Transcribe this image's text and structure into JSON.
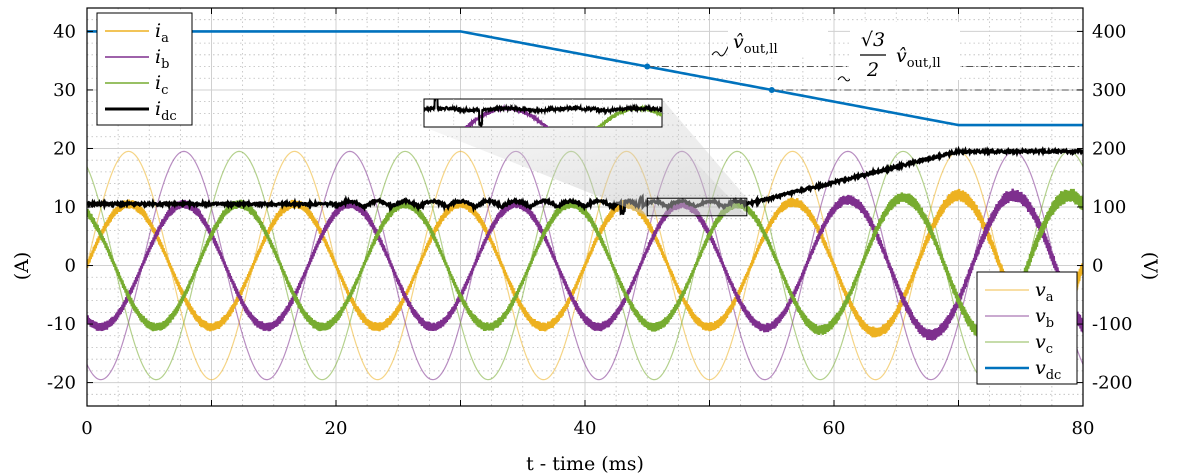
{
  "chart_data": {
    "type": "line",
    "xlabel": "t - time (ms)",
    "ylabel_left": "(A)",
    "ylabel_right": "(V)",
    "xlim": [
      0,
      80
    ],
    "ylim_left": [
      -24,
      44
    ],
    "ylim_right": [
      -240,
      440
    ],
    "xticks": [
      "0",
      "20",
      "40",
      "60",
      "80"
    ],
    "yticks_left": [
      "40",
      "30",
      "20",
      "10",
      "0",
      "-10",
      "-20"
    ],
    "yticks_right": [
      "400",
      "300",
      "200",
      "100",
      "0",
      "-100",
      "-200"
    ],
    "grid": "major and minor",
    "legend_left": {
      "placement": "top-left",
      "entries": [
        {
          "sym": "i",
          "sub": "a"
        },
        {
          "sym": "i",
          "sub": "b"
        },
        {
          "sym": "i",
          "sub": "c"
        },
        {
          "sym": "i",
          "sub": "dc"
        }
      ]
    },
    "legend_right": {
      "placement": "bottom-right",
      "entries": [
        {
          "sym": "v",
          "sub": "a"
        },
        {
          "sym": "v",
          "sub": "b"
        },
        {
          "sym": "v",
          "sub": "c"
        },
        {
          "sym": "v",
          "sub": "dc"
        }
      ]
    },
    "colors": {
      "a": "#EDB120",
      "b": "#7E2F8E",
      "c": "#77AC30",
      "dc_current": "#000000",
      "dc_voltage": "#0072BD"
    },
    "series": {
      "grid_frequency_hz": 75,
      "phase_voltage_amplitude_V": 195,
      "phase_current_amplitude_A": [
        {
          "t": 0,
          "value": 10.5
        },
        {
          "t": 53,
          "value": 10.5
        },
        {
          "t": 70,
          "value": 12
        },
        {
          "t": 80,
          "value": 12
        }
      ],
      "i_dc": [
        {
          "t": 0,
          "value": 10.5
        },
        {
          "t": 53,
          "value": 10.5
        },
        {
          "t": 70,
          "value": 19.5
        },
        {
          "t": 80,
          "value": 19.5
        }
      ],
      "v_dc": [
        {
          "t": 0,
          "value": 400
        },
        {
          "t": 30,
          "value": 400
        },
        {
          "t": 70,
          "value": 240
        },
        {
          "t": 80,
          "value": 240
        }
      ]
    },
    "annotations": {
      "peak_label": {
        "main": "v̂",
        "sub": "out,ll",
        "value_V": 340,
        "t": 45
      },
      "sqrt_label": {
        "num": "√3",
        "den": "2",
        "main": "v̂",
        "sub": "out,ll",
        "value_V": 300,
        "t": 55
      },
      "zoom_window": {
        "t": [
          45,
          53
        ],
        "value_A": [
          8.5,
          11.5
        ]
      }
    }
  }
}
